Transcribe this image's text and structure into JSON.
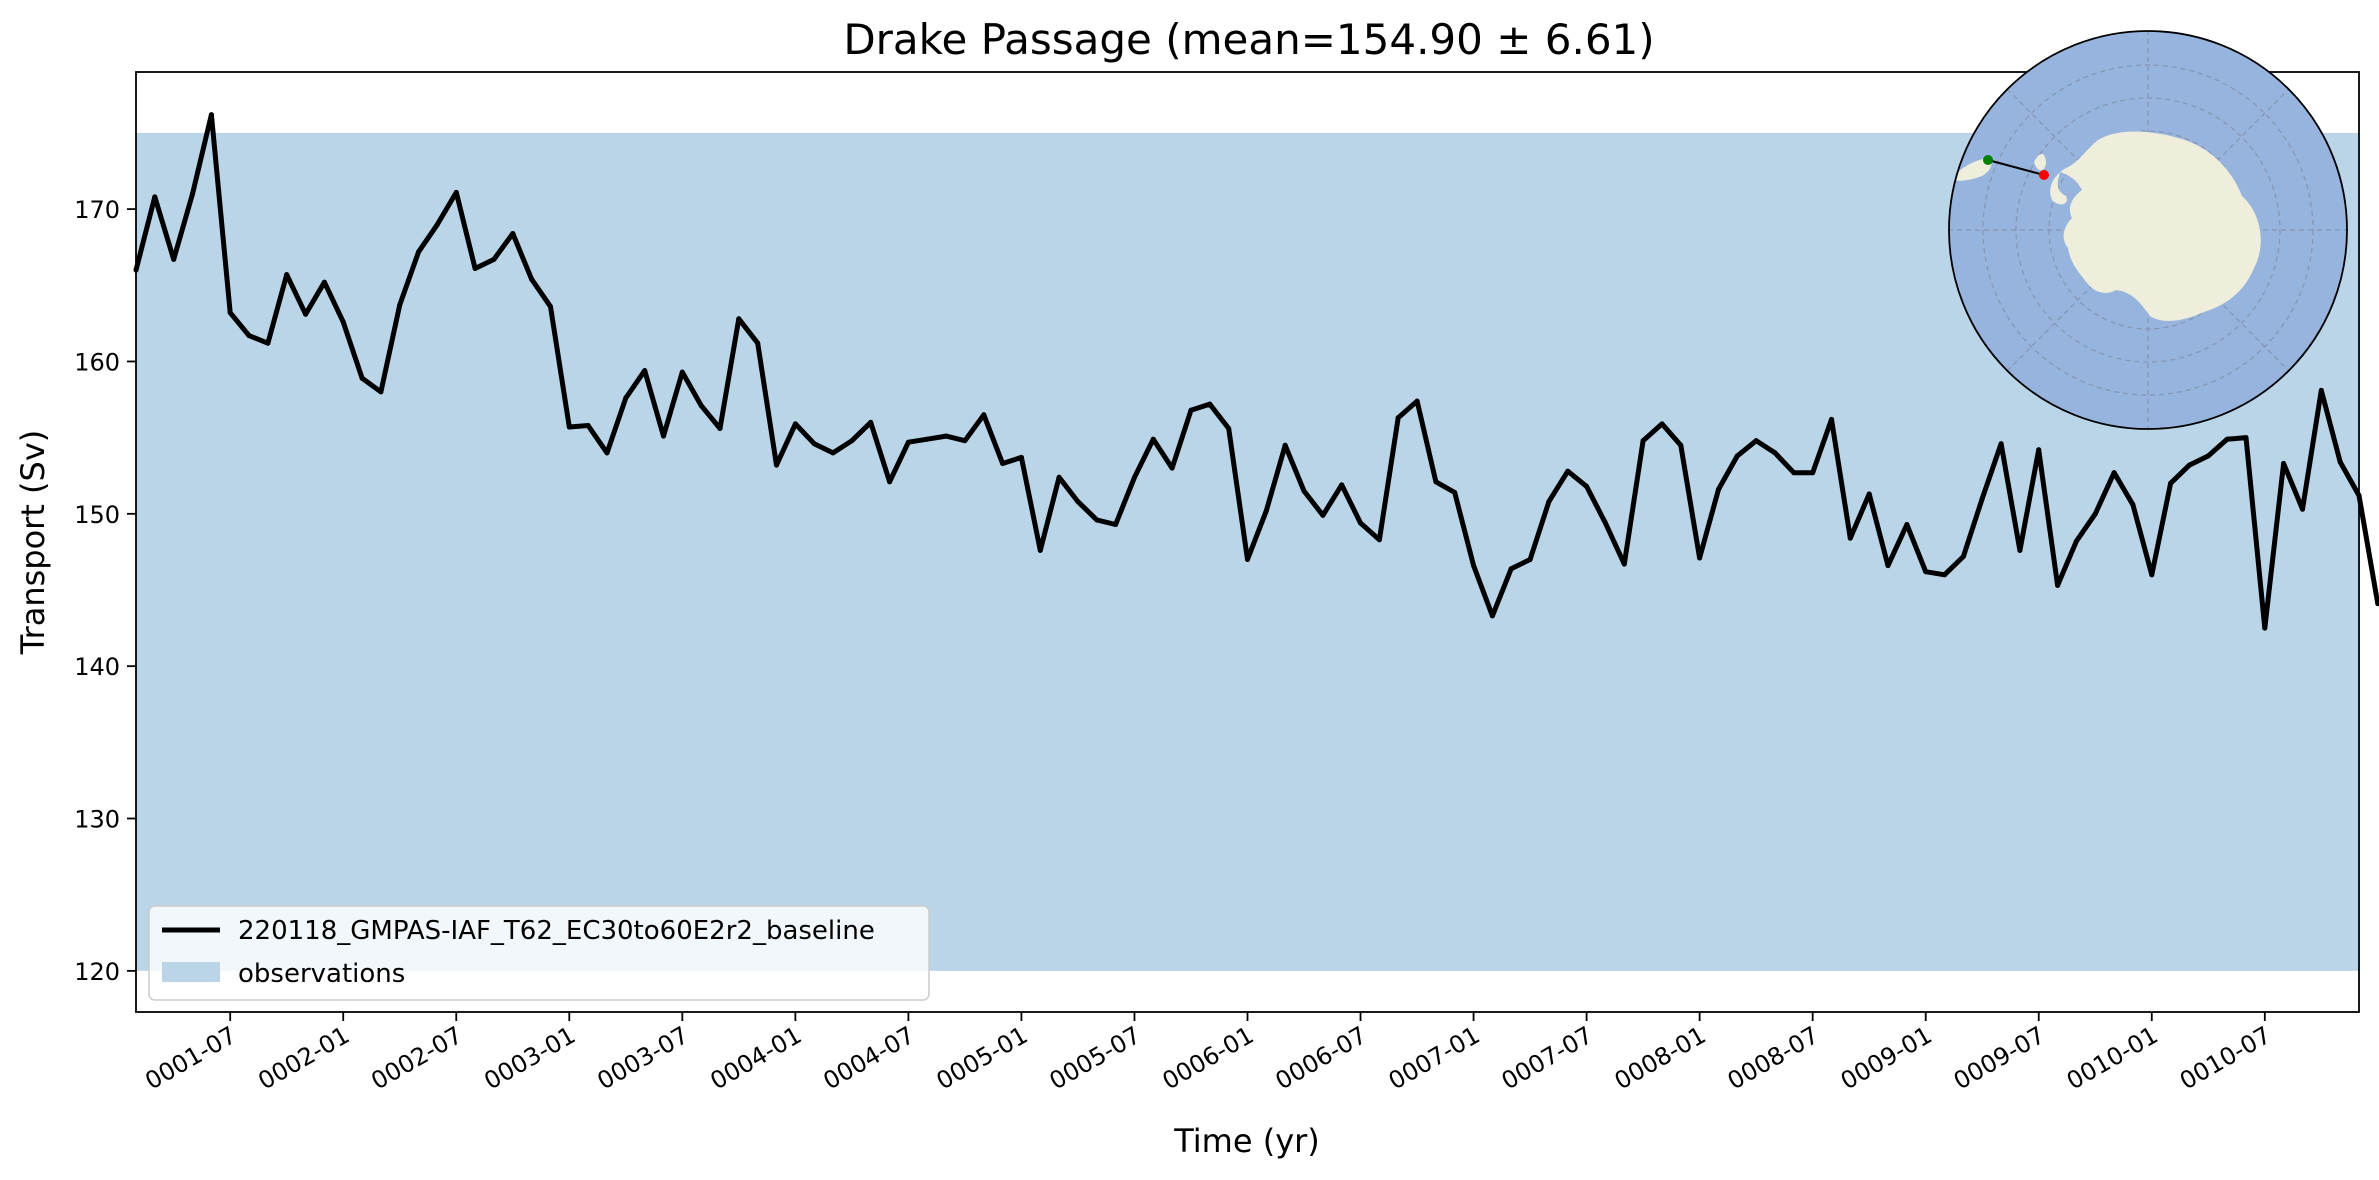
{
  "chart_data": {
    "type": "line",
    "title": "Drake Passage (mean=154.90 ± 6.61)",
    "xlabel": "Time (yr)",
    "ylabel": "Transport (Sv)",
    "ylim": [
      117.3,
      179.0
    ],
    "xlim": [
      "0001-02",
      "0010-12"
    ],
    "grid": false,
    "legend_position": "lower-left",
    "observations": {
      "name": "observations",
      "ymin": 120,
      "ymax": 175,
      "color": "#b9d5e7"
    },
    "y_ticks": [
      120,
      130,
      140,
      150,
      160,
      170
    ],
    "x_ticks": [
      "0001-07",
      "0002-01",
      "0002-07",
      "0003-01",
      "0003-07",
      "0004-01",
      "0004-07",
      "0005-01",
      "0005-07",
      "0006-01",
      "0006-07",
      "0007-01",
      "0007-07",
      "0008-01",
      "0008-07",
      "0009-01",
      "0009-07",
      "0010-01",
      "0010-07"
    ],
    "x_start": "0001-02",
    "series": [
      {
        "name": "220118_GMPAS-IAF_T62_EC30to60E2r2_baseline",
        "color": "#000000",
        "values": [
          166.0,
          170.8,
          166.7,
          171.0,
          176.2,
          163.2,
          161.7,
          161.2,
          165.7,
          163.1,
          165.2,
          162.6,
          158.9,
          158.0,
          163.7,
          167.2,
          169.0,
          171.1,
          166.1,
          166.7,
          168.4,
          165.4,
          163.6,
          155.7,
          155.8,
          154.0,
          157.6,
          159.4,
          155.1,
          159.3,
          157.1,
          155.6,
          162.8,
          161.2,
          153.2,
          155.9,
          154.6,
          154.0,
          154.8,
          156.0,
          152.1,
          154.7,
          154.9,
          155.1,
          154.8,
          156.5,
          153.3,
          153.7,
          147.6,
          152.4,
          150.8,
          149.6,
          149.3,
          152.4,
          154.9,
          153.0,
          156.8,
          157.2,
          155.6,
          147.0,
          150.2,
          154.5,
          151.5,
          149.9,
          151.9,
          149.4,
          148.3,
          156.3,
          157.4,
          152.1,
          151.4,
          146.6,
          143.3,
          146.4,
          147.0,
          150.8,
          152.8,
          151.8,
          149.4,
          146.7,
          154.8,
          155.9,
          154.5,
          147.1,
          151.6,
          153.8,
          154.8,
          154.0,
          152.7,
          152.7,
          156.2,
          148.4,
          151.3,
          146.6,
          149.3,
          146.2,
          146.0,
          147.2,
          151.0,
          154.6,
          147.6,
          154.2,
          145.3,
          148.2,
          150.0,
          152.7,
          150.6,
          146.0,
          152.0,
          153.2,
          153.8,
          154.9,
          155.0,
          142.5,
          153.3,
          150.3,
          158.1,
          153.4,
          151.2,
          144.1
        ]
      }
    ],
    "inset_map": {
      "label": "antarctica-map",
      "ocean_color": "#97b4df",
      "land_color": "#efeedc",
      "start_marker_color": "#008000",
      "end_marker_color": "#ff0000"
    }
  }
}
